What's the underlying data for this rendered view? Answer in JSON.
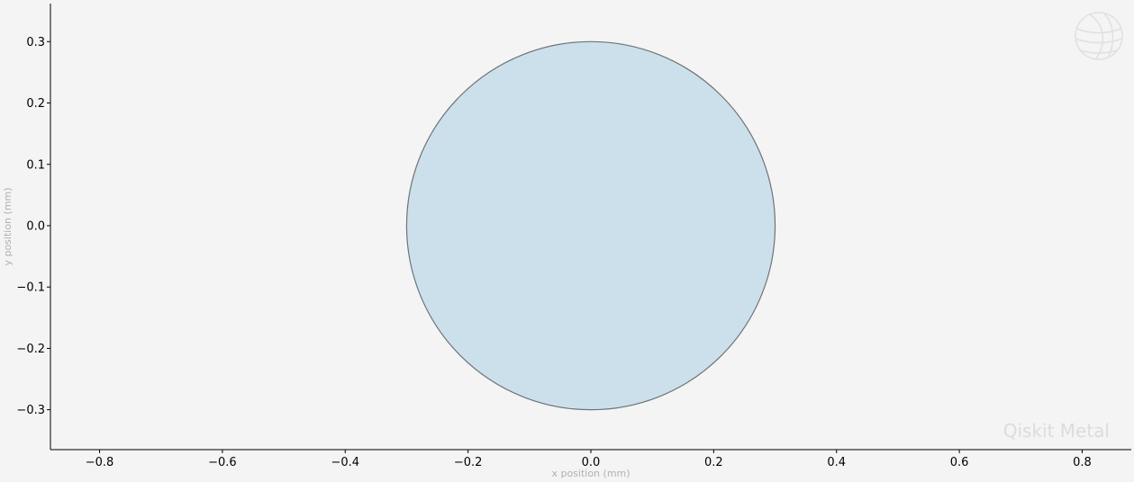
{
  "chart_data": {
    "type": "scatter",
    "title": "",
    "xlabel": "x position (mm)",
    "ylabel": "y position (mm)",
    "xlim": [
      -0.88,
      0.88
    ],
    "ylim": [
      -0.365,
      0.362
    ],
    "xticks": [
      -0.8,
      -0.6,
      -0.4,
      -0.2,
      0.0,
      0.2,
      0.4,
      0.6,
      0.8
    ],
    "xtick_labels": [
      "−0.8",
      "−0.6",
      "−0.4",
      "−0.2",
      "0.0",
      "0.2",
      "0.4",
      "0.6",
      "0.8"
    ],
    "yticks": [
      0.3,
      0.2,
      0.1,
      0.0,
      -0.1,
      -0.2,
      -0.3
    ],
    "ytick_labels": [
      "0.3",
      "0.2",
      "0.1",
      "0.0",
      "−0.1",
      "−0.2",
      "−0.3"
    ],
    "shapes": [
      {
        "kind": "circle",
        "center": [
          0.0,
          0.0
        ],
        "radius": 0.3,
        "fill": "#cce0eb",
        "stroke": "#6f7377"
      }
    ],
    "grid": false,
    "background": "#f4f4f4",
    "axis_color": "#000000",
    "watermark": "Qiskit Metal",
    "logo": "qiskit-globe-icon"
  }
}
